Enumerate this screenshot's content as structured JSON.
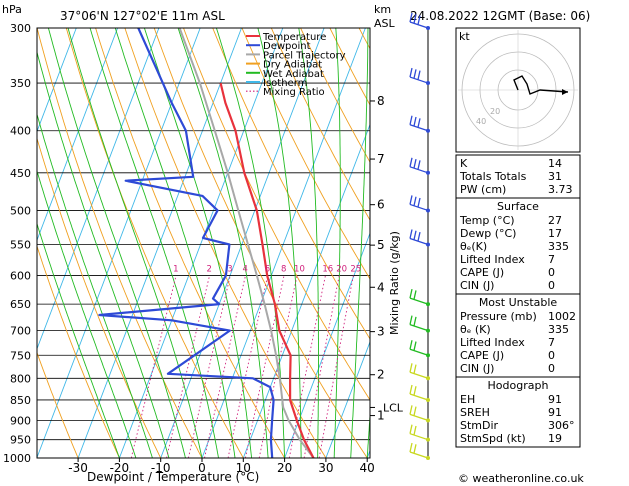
{
  "header": {
    "hpa": "hPa",
    "location": "37°06'N 127°02'E 11m ASL",
    "km": "km",
    "asl": "ASL",
    "datetime": "24.08.2022 12GMT (Base: 06)"
  },
  "axes": {
    "xlabel": "Dewpoint / Temperature (°C)",
    "mixing_label": "Mixing Ratio (g/kg)",
    "pressure_ticks": [
      300,
      350,
      400,
      450,
      500,
      550,
      600,
      650,
      700,
      750,
      800,
      850,
      900,
      950,
      1000
    ],
    "temp_ticks": [
      -30,
      -20,
      -10,
      0,
      10,
      20,
      30,
      40
    ],
    "km_ticks": [
      {
        "label": "8",
        "p": 368
      },
      {
        "label": "7",
        "p": 433
      },
      {
        "label": "6",
        "p": 492
      },
      {
        "label": "5",
        "p": 551
      },
      {
        "label": "4",
        "p": 620
      },
      {
        "label": "3",
        "p": 702
      },
      {
        "label": "2",
        "p": 792
      },
      {
        "label": "1",
        "p": 888
      }
    ],
    "lcl_label": "LCL",
    "lcl_p": 868,
    "mixing_ratios": [
      "1",
      "2",
      "3",
      "4",
      "6",
      "8",
      "10",
      "16",
      "20",
      "25"
    ]
  },
  "legend": {
    "items": [
      {
        "label": "Temperature",
        "color": "#e8323c"
      },
      {
        "label": "Dewpoint",
        "color": "#2e4ad6"
      },
      {
        "label": "Parcel Trajectory",
        "color": "#a8a8a8"
      },
      {
        "label": "Dry Adiabat",
        "color": "#f0a020"
      },
      {
        "label": "Wet Adiabat",
        "color": "#22bb22"
      },
      {
        "label": "Isotherm",
        "color": "#40b8e8"
      },
      {
        "label": "Mixing Ratio",
        "color": "#d0207c"
      }
    ]
  },
  "chart_data": {
    "type": "line",
    "title": "37°06'N 127°02'E 11m ASL",
    "xlabel": "Dewpoint / Temperature (°C)",
    "ylabel": "hPa",
    "xlim": [
      -35,
      40
    ],
    "ylim": [
      1000,
      300
    ],
    "series": [
      {
        "name": "Temperature",
        "color": "#e8323c",
        "points": [
          [
            1000,
            27
          ],
          [
            950,
            23
          ],
          [
            900,
            19.5
          ],
          [
            850,
            16
          ],
          [
            800,
            14
          ],
          [
            750,
            12
          ],
          [
            700,
            7
          ],
          [
            650,
            3.5
          ],
          [
            600,
            -1
          ],
          [
            550,
            -5
          ],
          [
            500,
            -9.5
          ],
          [
            450,
            -16
          ],
          [
            400,
            -22
          ],
          [
            370,
            -27
          ],
          [
            350,
            -30
          ]
        ]
      },
      {
        "name": "Dewpoint",
        "color": "#2e4ad6",
        "points": [
          [
            1000,
            17
          ],
          [
            950,
            15
          ],
          [
            900,
            13.5
          ],
          [
            850,
            12
          ],
          [
            820,
            10
          ],
          [
            800,
            5
          ],
          [
            790,
            -16
          ],
          [
            700,
            -5
          ],
          [
            680,
            -20
          ],
          [
            670,
            -38
          ],
          [
            650,
            -10
          ],
          [
            640,
            -12
          ],
          [
            600,
            -11
          ],
          [
            550,
            -13
          ],
          [
            540,
            -20
          ],
          [
            500,
            -19
          ],
          [
            480,
            -24
          ],
          [
            460,
            -44
          ],
          [
            455,
            -28
          ],
          [
            400,
            -34
          ],
          [
            370,
            -40
          ],
          [
            300,
            -55
          ]
        ]
      },
      {
        "name": "Parcel Trajectory",
        "color": "#a8a8a8",
        "points": [
          [
            1000,
            27
          ],
          [
            950,
            22
          ],
          [
            900,
            17.5
          ],
          [
            868,
            15
          ],
          [
            800,
            11.5
          ],
          [
            750,
            8.5
          ],
          [
            700,
            5
          ],
          [
            650,
            1
          ],
          [
            600,
            -3.5
          ],
          [
            550,
            -8.5
          ],
          [
            500,
            -14
          ],
          [
            450,
            -20
          ],
          [
            400,
            -27
          ],
          [
            350,
            -35
          ],
          [
            300,
            -45
          ]
        ]
      }
    ]
  },
  "indices": {
    "rows": [
      {
        "k": "K",
        "v": "14"
      },
      {
        "k": "Totals Totals",
        "v": "31"
      },
      {
        "k": "PW (cm)",
        "v": "3.73"
      }
    ]
  },
  "surface": {
    "title": "Surface",
    "rows": [
      {
        "k": "Temp (°C)",
        "v": "27"
      },
      {
        "k": "Dewp (°C)",
        "v": "17"
      },
      {
        "k": "θₑ(K)",
        "v": "335"
      },
      {
        "k": "Lifted Index",
        "v": "7"
      },
      {
        "k": "CAPE (J)",
        "v": "0"
      },
      {
        "k": "CIN (J)",
        "v": "0"
      }
    ]
  },
  "unstable": {
    "title": "Most Unstable",
    "rows": [
      {
        "k": "Pressure (mb)",
        "v": "1002"
      },
      {
        "k": "θₑ (K)",
        "v": "335"
      },
      {
        "k": "Lifted Index",
        "v": "7"
      },
      {
        "k": "CAPE (J)",
        "v": "0"
      },
      {
        "k": "CIN (J)",
        "v": "0"
      }
    ]
  },
  "hodo_table": {
    "title": "Hodograph",
    "rows": [
      {
        "k": "EH",
        "v": "91"
      },
      {
        "k": "SREH",
        "v": "91"
      },
      {
        "k": "StmDir",
        "v": "306°"
      },
      {
        "k": "StmSpd (kt)",
        "v": "19"
      }
    ]
  },
  "hodograph": {
    "unit": "kt",
    "ring_labels": [
      "20",
      "40"
    ]
  },
  "footer": {
    "copyright": "© weatheronline.co.uk"
  }
}
